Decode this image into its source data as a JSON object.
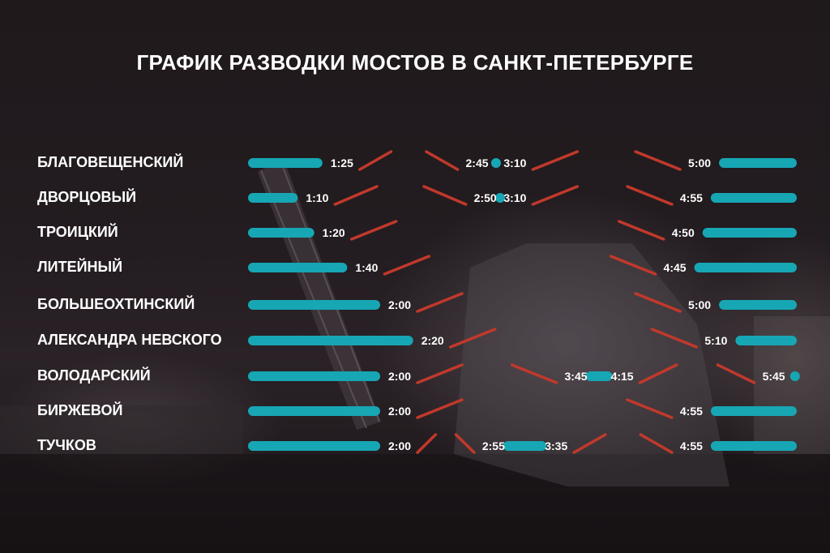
{
  "title": "ГРАФИК РАЗВОДКИ МОСТОВ В САНКТ-ПЕТЕРБУРГЕ",
  "colors": {
    "open": "#17a6b4",
    "raised": "#c0392b",
    "text": "#ffffff",
    "background": "#1f191c"
  },
  "chart_data": {
    "type": "gantt",
    "x_unit": "time (h:mm)",
    "xlim": [
      "0:00",
      "6:00"
    ],
    "series_meaning": {
      "teal": "traffic open",
      "red": "bridge raised"
    },
    "rows": [
      {
        "name": "БЛАГОВЕЩЕНСКИЙ",
        "raised": [
          [
            "1:25",
            "2:45"
          ],
          [
            "3:10",
            "5:00"
          ]
        ],
        "time_labels": [
          "1:25",
          "2:45",
          "3:10",
          "5:00"
        ]
      },
      {
        "name": "ДВОРЦОВЫЙ",
        "raised": [
          [
            "1:10",
            "2:50"
          ],
          [
            "3:10",
            "4:55"
          ]
        ],
        "time_labels": [
          "1:10",
          "2:50",
          "3:10",
          "4:55"
        ]
      },
      {
        "name": "ТРОИЦКИЙ",
        "raised": [
          [
            "1:20",
            "4:50"
          ]
        ],
        "time_labels": [
          "1:20",
          "4:50"
        ]
      },
      {
        "name": "ЛИТЕЙНЫЙ",
        "raised": [
          [
            "1:40",
            "4:45"
          ]
        ],
        "time_labels": [
          "1:40",
          "4:45"
        ]
      },
      {
        "name": "БОЛЬШЕОХТИНСКИЙ",
        "raised": [
          [
            "2:00",
            "5:00"
          ]
        ],
        "time_labels": [
          "2:00",
          "5:00"
        ]
      },
      {
        "name": "АЛЕКСАНДРА НЕВСКОГО",
        "raised": [
          [
            "2:20",
            "5:10"
          ]
        ],
        "time_labels": [
          "2:20",
          "5:10"
        ]
      },
      {
        "name": "ВОЛОДАРСКИЙ",
        "raised": [
          [
            "2:00",
            "3:45"
          ],
          [
            "4:15",
            "5:45"
          ]
        ],
        "time_labels": [
          "2:00",
          "3:45",
          "4:15",
          "5:45"
        ]
      },
      {
        "name": "БИРЖЕВОЙ",
        "raised": [
          [
            "2:00",
            "4:55"
          ]
        ],
        "time_labels": [
          "2:00",
          "4:55"
        ]
      },
      {
        "name": "ТУЧКОВ",
        "raised": [
          [
            "2:00",
            "2:55"
          ],
          [
            "3:35",
            "4:55"
          ]
        ],
        "time_labels": [
          "2:00",
          "2:55",
          "3:35",
          "4:55"
        ]
      }
    ]
  }
}
